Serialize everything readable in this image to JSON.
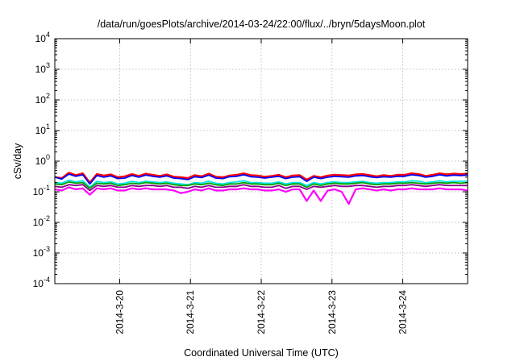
{
  "chart_data": {
    "type": "line",
    "title": "/data/run/goesPlots/archive/2014-03-24/22:00/flux/../bryn/5daysMoon.plot",
    "xlabel": "Coordinated Universal Time (UTC)",
    "ylabel": "cSv/day",
    "x_range": [
      "2014-03-19 02:00",
      "2014-03-24 22:00"
    ],
    "x_ticks": [
      {
        "label": "2014-3-20",
        "value": "2014-03-20 00:00"
      },
      {
        "label": "2014-3-21",
        "value": "2014-03-21 00:00"
      },
      {
        "label": "2014-3-22",
        "value": "2014-03-22 00:00"
      },
      {
        "label": "2014-3-23",
        "value": "2014-03-23 00:00"
      },
      {
        "label": "2014-3-24",
        "value": "2014-03-24 00:00"
      }
    ],
    "y_scale": "log",
    "ylim": [
      0.0001,
      10000
    ],
    "y_ticks": [
      {
        "base": "10",
        "exp": "4",
        "value": 10000
      },
      {
        "base": "10",
        "exp": "3",
        "value": 1000
      },
      {
        "base": "10",
        "exp": "2",
        "value": 100
      },
      {
        "base": "10",
        "exp": "1",
        "value": 10
      },
      {
        "base": "10",
        "exp": "0",
        "value": 1
      },
      {
        "base": "10",
        "exp": "-1",
        "value": 0.1
      },
      {
        "base": "10",
        "exp": "-2",
        "value": 0.01
      },
      {
        "base": "10",
        "exp": "-3",
        "value": 0.001
      },
      {
        "base": "10",
        "exp": "-4",
        "value": 0.0001
      }
    ],
    "grid": true,
    "series": [
      {
        "color": "#ff0000",
        "values": [
          0.3,
          0.28,
          0.42,
          0.35,
          0.4,
          0.2,
          0.38,
          0.34,
          0.37,
          0.3,
          0.32,
          0.38,
          0.33,
          0.39,
          0.36,
          0.33,
          0.37,
          0.31,
          0.3,
          0.28,
          0.35,
          0.32,
          0.39,
          0.31,
          0.3,
          0.34,
          0.36,
          0.4,
          0.35,
          0.34,
          0.31,
          0.33,
          0.36,
          0.3,
          0.34,
          0.35,
          0.25,
          0.33,
          0.3,
          0.34,
          0.36,
          0.35,
          0.34,
          0.37,
          0.38,
          0.35,
          0.32,
          0.35,
          0.33,
          0.36,
          0.36,
          0.4,
          0.38,
          0.33,
          0.36,
          0.4,
          0.37,
          0.39,
          0.38,
          0.39
        ]
      },
      {
        "color": "#0000ff",
        "values": [
          0.3,
          0.26,
          0.38,
          0.32,
          0.36,
          0.18,
          0.34,
          0.3,
          0.33,
          0.27,
          0.28,
          0.34,
          0.3,
          0.35,
          0.32,
          0.3,
          0.33,
          0.28,
          0.27,
          0.25,
          0.31,
          0.29,
          0.35,
          0.28,
          0.27,
          0.31,
          0.32,
          0.36,
          0.31,
          0.3,
          0.28,
          0.3,
          0.32,
          0.27,
          0.3,
          0.31,
          0.22,
          0.3,
          0.27,
          0.3,
          0.32,
          0.31,
          0.3,
          0.33,
          0.34,
          0.31,
          0.29,
          0.31,
          0.3,
          0.32,
          0.32,
          0.36,
          0.34,
          0.3,
          0.32,
          0.36,
          0.33,
          0.35,
          0.34,
          0.35
        ]
      },
      {
        "color": "#00e5e5",
        "values": [
          0.2,
          0.19,
          0.24,
          0.21,
          0.23,
          0.14,
          0.22,
          0.2,
          0.21,
          0.18,
          0.19,
          0.22,
          0.2,
          0.22,
          0.21,
          0.2,
          0.21,
          0.19,
          0.18,
          0.17,
          0.2,
          0.19,
          0.22,
          0.19,
          0.18,
          0.2,
          0.21,
          0.23,
          0.2,
          0.2,
          0.19,
          0.19,
          0.21,
          0.18,
          0.2,
          0.2,
          0.16,
          0.2,
          0.18,
          0.2,
          0.21,
          0.2,
          0.2,
          0.21,
          0.22,
          0.2,
          0.19,
          0.2,
          0.2,
          0.21,
          0.21,
          0.23,
          0.22,
          0.2,
          0.21,
          0.23,
          0.21,
          0.22,
          0.22,
          0.22
        ]
      },
      {
        "color": "#00a000",
        "values": [
          0.18,
          0.17,
          0.21,
          0.19,
          0.2,
          0.13,
          0.19,
          0.18,
          0.19,
          0.16,
          0.17,
          0.19,
          0.18,
          0.2,
          0.19,
          0.18,
          0.19,
          0.17,
          0.16,
          0.16,
          0.18,
          0.17,
          0.19,
          0.17,
          0.16,
          0.18,
          0.18,
          0.2,
          0.18,
          0.18,
          0.17,
          0.17,
          0.19,
          0.16,
          0.18,
          0.18,
          0.14,
          0.18,
          0.16,
          0.18,
          0.19,
          0.18,
          0.18,
          0.19,
          0.2,
          0.18,
          0.17,
          0.18,
          0.18,
          0.19,
          0.19,
          0.2,
          0.19,
          0.18,
          0.19,
          0.2,
          0.19,
          0.2,
          0.19,
          0.2
        ]
      },
      {
        "color": "#8b008b",
        "values": [
          0.15,
          0.14,
          0.17,
          0.16,
          0.17,
          0.11,
          0.16,
          0.15,
          0.16,
          0.14,
          0.14,
          0.16,
          0.15,
          0.16,
          0.16,
          0.15,
          0.16,
          0.14,
          0.14,
          0.13,
          0.15,
          0.14,
          0.16,
          0.14,
          0.14,
          0.15,
          0.15,
          0.17,
          0.15,
          0.15,
          0.14,
          0.14,
          0.16,
          0.13,
          0.15,
          0.15,
          0.12,
          0.15,
          0.14,
          0.15,
          0.16,
          0.15,
          0.15,
          0.16,
          0.16,
          0.15,
          0.14,
          0.15,
          0.15,
          0.16,
          0.16,
          0.17,
          0.16,
          0.15,
          0.16,
          0.17,
          0.16,
          0.16,
          0.16,
          0.16
        ]
      },
      {
        "color": "#ff00ff",
        "values": [
          0.12,
          0.11,
          0.14,
          0.12,
          0.13,
          0.08,
          0.13,
          0.12,
          0.13,
          0.11,
          0.11,
          0.13,
          0.12,
          0.13,
          0.12,
          0.12,
          0.12,
          0.11,
          0.09,
          0.1,
          0.12,
          0.11,
          0.13,
          0.11,
          0.11,
          0.12,
          0.12,
          0.13,
          0.12,
          0.12,
          0.11,
          0.11,
          0.12,
          0.1,
          0.12,
          0.12,
          0.05,
          0.11,
          0.05,
          0.11,
          0.12,
          0.1,
          0.04,
          0.12,
          0.13,
          0.12,
          0.11,
          0.12,
          0.11,
          0.12,
          0.12,
          0.13,
          0.12,
          0.12,
          0.12,
          0.13,
          0.12,
          0.12,
          0.12,
          0.11
        ]
      }
    ]
  }
}
